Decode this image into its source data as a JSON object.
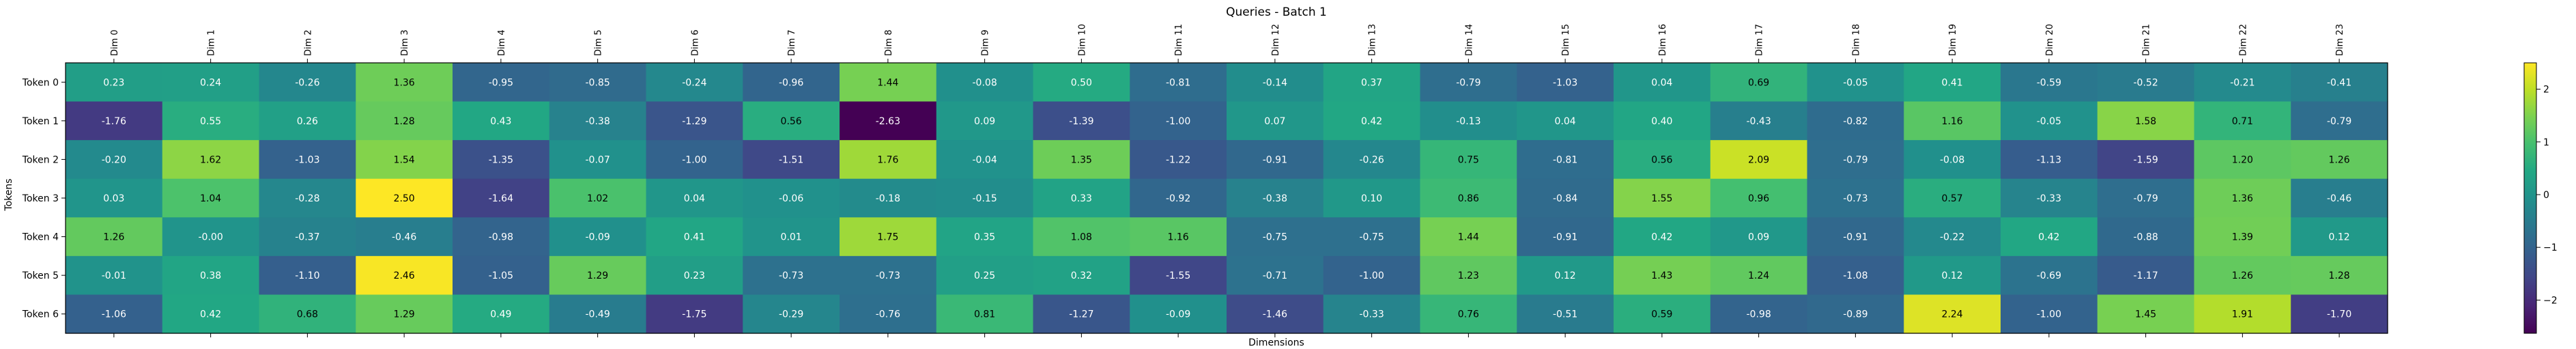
{
  "chart_data": {
    "type": "heatmap",
    "title": "Queries - Batch 1",
    "xlabel": "Dimensions",
    "ylabel": "Tokens",
    "columns": [
      "Dim 0",
      "Dim 1",
      "Dim 2",
      "Dim 3",
      "Dim 4",
      "Dim 5",
      "Dim 6",
      "Dim 7",
      "Dim 8",
      "Dim 9",
      "Dim 10",
      "Dim 11",
      "Dim 12",
      "Dim 13",
      "Dim 14",
      "Dim 15",
      "Dim 16",
      "Dim 17",
      "Dim 18",
      "Dim 19",
      "Dim 20",
      "Dim 21",
      "Dim 22",
      "Dim 23"
    ],
    "rows": [
      "Token 0",
      "Token 1",
      "Token 2",
      "Token 3",
      "Token 4",
      "Token 5",
      "Token 6"
    ],
    "values": [
      [
        0.23,
        0.24,
        -0.26,
        1.36,
        -0.95,
        -0.85,
        -0.24,
        -0.96,
        1.44,
        -0.08,
        0.5,
        -0.81,
        -0.14,
        0.37,
        -0.79,
        -1.03,
        0.04,
        0.69,
        -0.05,
        0.41,
        -0.59,
        -0.52,
        -0.21,
        -0.41
      ],
      [
        -1.76,
        0.55,
        0.26,
        1.28,
        0.43,
        -0.38,
        -1.29,
        0.56,
        -2.63,
        0.09,
        -1.39,
        -1.0,
        0.07,
        0.42,
        -0.13,
        0.04,
        0.4,
        -0.43,
        -0.82,
        1.16,
        -0.05,
        1.58,
        0.71,
        -0.79
      ],
      [
        -0.2,
        1.62,
        -1.03,
        1.54,
        -1.35,
        -0.07,
        -1.0,
        -1.51,
        1.76,
        -0.04,
        1.35,
        -1.22,
        -0.91,
        -0.26,
        0.75,
        -0.81,
        0.56,
        2.09,
        -0.79,
        -0.08,
        -1.13,
        -1.59,
        1.2,
        1.26
      ],
      [
        0.03,
        1.04,
        -0.28,
        2.5,
        -1.64,
        1.02,
        0.04,
        -0.06,
        -0.18,
        -0.15,
        0.33,
        -0.92,
        -0.38,
        0.1,
        0.86,
        -0.84,
        1.55,
        0.96,
        -0.73,
        0.57,
        -0.33,
        -0.79,
        1.36,
        -0.46
      ],
      [
        1.26,
        -0.0,
        -0.37,
        -0.46,
        -0.98,
        -0.09,
        0.41,
        0.01,
        1.75,
        0.35,
        1.08,
        1.16,
        -0.75,
        -0.75,
        1.44,
        -0.91,
        0.42,
        0.09,
        -0.91,
        -0.22,
        0.42,
        -0.88,
        1.39,
        0.12
      ],
      [
        -0.01,
        0.38,
        -1.1,
        2.46,
        -1.05,
        1.29,
        0.23,
        -0.73,
        -0.73,
        0.25,
        0.32,
        -1.55,
        -0.71,
        -1.0,
        1.23,
        0.12,
        1.43,
        1.24,
        -1.08,
        0.12,
        -0.69,
        -1.17,
        1.26,
        1.28
      ],
      [
        -1.06,
        0.42,
        0.68,
        1.29,
        0.49,
        -0.49,
        -1.75,
        -0.29,
        -0.76,
        0.81,
        -1.27,
        -0.09,
        -1.46,
        -0.33,
        0.76,
        -0.51,
        0.59,
        -0.98,
        -0.89,
        2.24,
        -1.0,
        1.45,
        1.91,
        -1.7
      ]
    ],
    "colormap": "viridis",
    "vmin": -2.63,
    "vmax": 2.5,
    "colorbar_ticks": [
      "2",
      "1",
      "0",
      "−1",
      "−2"
    ],
    "colorbar_tick_values": [
      2,
      1,
      0,
      -1,
      -2
    ],
    "grid": false,
    "legend": "colorbar-right"
  }
}
